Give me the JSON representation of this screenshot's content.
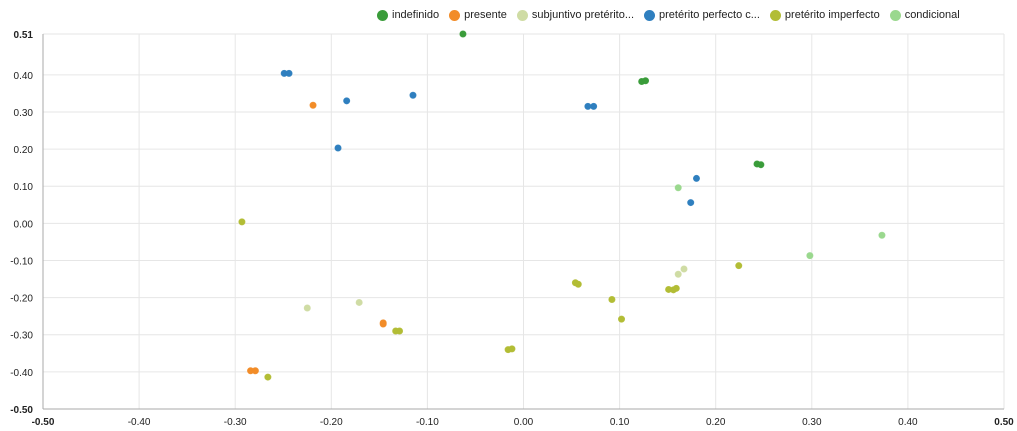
{
  "chart_data": {
    "type": "scatter",
    "title": "",
    "xlabel": "",
    "ylabel": "",
    "xlim": [
      -0.5,
      0.5
    ],
    "ylim": [
      -0.5,
      0.51
    ],
    "x_ticks": [
      "-0.50",
      "-0.40",
      "-0.30",
      "-0.20",
      "-0.10",
      "0.00",
      "0.10",
      "0.20",
      "0.30",
      "0.40",
      "0.50"
    ],
    "y_ticks": [
      "0.51",
      "0.40",
      "0.30",
      "0.20",
      "0.10",
      "0.00",
      "-0.10",
      "-0.20",
      "-0.30",
      "-0.40",
      "-0.50"
    ],
    "grid": true,
    "legend_position": "top",
    "series": [
      {
        "name": "indefinido",
        "color": "#3a9c3a",
        "points": [
          {
            "x": -0.063,
            "y": 0.51
          },
          {
            "x": 0.123,
            "y": 0.382
          },
          {
            "x": 0.127,
            "y": 0.384
          },
          {
            "x": 0.243,
            "y": 0.16
          },
          {
            "x": 0.247,
            "y": 0.158
          }
        ]
      },
      {
        "name": "presente",
        "color": "#f28c28",
        "points": [
          {
            "x": -0.219,
            "y": 0.318
          },
          {
            "x": -0.146,
            "y": -0.268
          },
          {
            "x": -0.146,
            "y": -0.271
          },
          {
            "x": -0.284,
            "y": -0.397
          },
          {
            "x": -0.279,
            "y": -0.397
          }
        ]
      },
      {
        "name": "subjuntivo pretérito...",
        "color": "#cfdca4",
        "points": [
          {
            "x": -0.225,
            "y": -0.228
          },
          {
            "x": -0.171,
            "y": -0.213
          },
          {
            "x": 0.161,
            "y": -0.137
          },
          {
            "x": 0.167,
            "y": -0.123
          }
        ]
      },
      {
        "name": "pretérito perfecto c...",
        "color": "#2f7fbf",
        "points": [
          {
            "x": -0.249,
            "y": 0.404
          },
          {
            "x": -0.244,
            "y": 0.404
          },
          {
            "x": -0.184,
            "y": 0.33
          },
          {
            "x": -0.115,
            "y": 0.345
          },
          {
            "x": -0.193,
            "y": 0.203
          },
          {
            "x": 0.067,
            "y": 0.315
          },
          {
            "x": 0.073,
            "y": 0.315
          },
          {
            "x": 0.18,
            "y": 0.121
          },
          {
            "x": 0.174,
            "y": 0.056
          }
        ]
      },
      {
        "name": "pretérito imperfecto",
        "color": "#b2bd35",
        "points": [
          {
            "x": -0.293,
            "y": 0.004
          },
          {
            "x": -0.266,
            "y": -0.414
          },
          {
            "x": -0.133,
            "y": -0.29
          },
          {
            "x": -0.129,
            "y": -0.29
          },
          {
            "x": -0.016,
            "y": -0.34
          },
          {
            "x": -0.012,
            "y": -0.338
          },
          {
            "x": 0.054,
            "y": -0.16
          },
          {
            "x": 0.057,
            "y": -0.164
          },
          {
            "x": 0.092,
            "y": -0.205
          },
          {
            "x": 0.102,
            "y": -0.258
          },
          {
            "x": 0.151,
            "y": -0.178
          },
          {
            "x": 0.156,
            "y": -0.179
          },
          {
            "x": 0.159,
            "y": -0.175
          },
          {
            "x": 0.224,
            "y": -0.114
          }
        ]
      },
      {
        "name": "condicional",
        "color": "#9ad88e",
        "points": [
          {
            "x": 0.161,
            "y": 0.096
          },
          {
            "x": 0.298,
            "y": -0.087
          },
          {
            "x": 0.373,
            "y": -0.032
          }
        ]
      }
    ]
  }
}
